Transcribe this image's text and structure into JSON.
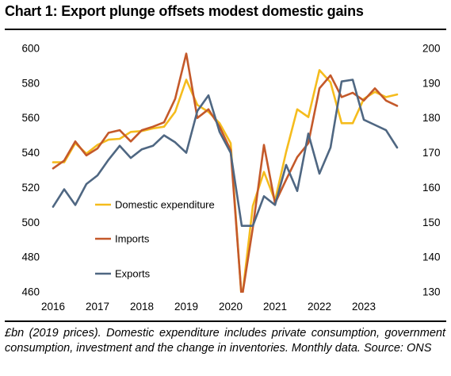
{
  "title": "Chart 1: Export plunge offsets modest domestic gains",
  "caption": "£bn (2019 prices). Domestic expenditure includes private consumption, government consumption, investment and the change in inventories. Monthly data. Source: ONS",
  "colors": {
    "domestic": "#F5BC1D",
    "imports": "#C4592A",
    "exports": "#4F6782",
    "text": "#000000"
  },
  "chart_data": {
    "type": "line",
    "x_ticks": [
      "2016",
      "2017",
      "2018",
      "2019",
      "2020",
      "2021",
      "2022",
      "2023"
    ],
    "y_left": {
      "ylim": [
        460,
        600
      ],
      "ticks": [
        "600",
        "580",
        "560",
        "540",
        "520",
        "500",
        "480",
        "460"
      ]
    },
    "y_right": {
      "ylim": [
        130,
        200
      ],
      "ticks": [
        "200",
        "190",
        "180",
        "170",
        "160",
        "150",
        "140",
        "130"
      ]
    },
    "grid": false,
    "legend_position": "left, inside plot",
    "series": [
      {
        "name": "Domestic expenditure",
        "axis": "left",
        "color": "#F5BC1D",
        "points": [
          [
            2016.0,
            534.5
          ],
          [
            2016.25,
            534.5
          ],
          [
            2016.5,
            545.5
          ],
          [
            2016.75,
            539.5
          ],
          [
            2017.0,
            544.5
          ],
          [
            2017.25,
            547.5
          ],
          [
            2017.5,
            548
          ],
          [
            2017.75,
            552
          ],
          [
            2018.0,
            552.5
          ],
          [
            2018.25,
            554
          ],
          [
            2018.5,
            555
          ],
          [
            2018.75,
            563.5
          ],
          [
            2019.0,
            582
          ],
          [
            2019.25,
            567.5
          ],
          [
            2019.5,
            563.5
          ],
          [
            2019.75,
            557
          ],
          [
            2020.0,
            545.5
          ],
          [
            2020.25,
            455
          ],
          [
            2020.5,
            509.5
          ],
          [
            2020.75,
            529
          ],
          [
            2021.0,
            512.5
          ],
          [
            2021.25,
            540.5
          ],
          [
            2021.5,
            565
          ],
          [
            2021.75,
            560.5
          ],
          [
            2022.0,
            587.5
          ],
          [
            2022.25,
            580.5
          ],
          [
            2022.5,
            557
          ],
          [
            2022.75,
            557
          ],
          [
            2023.0,
            571
          ],
          [
            2023.25,
            575
          ],
          [
            2023.5,
            572
          ],
          [
            2023.75,
            573.5
          ]
        ]
      },
      {
        "name": "Imports",
        "axis": "left",
        "color": "#C4592A",
        "points": [
          [
            2016.0,
            531
          ],
          [
            2016.25,
            535.5
          ],
          [
            2016.5,
            546.5
          ],
          [
            2016.75,
            538.5
          ],
          [
            2017.0,
            542.5
          ],
          [
            2017.25,
            551.5
          ],
          [
            2017.5,
            553
          ],
          [
            2017.75,
            546.5
          ],
          [
            2018.0,
            553
          ],
          [
            2018.25,
            555
          ],
          [
            2018.5,
            557.5
          ],
          [
            2018.75,
            571
          ],
          [
            2019.0,
            597
          ],
          [
            2019.25,
            560
          ],
          [
            2019.5,
            565
          ],
          [
            2019.75,
            555
          ],
          [
            2020.0,
            541.5
          ],
          [
            2020.25,
            456
          ],
          [
            2020.5,
            497
          ],
          [
            2020.75,
            544.5
          ],
          [
            2021.0,
            511
          ],
          [
            2021.25,
            524.5
          ],
          [
            2021.5,
            537.5
          ],
          [
            2021.75,
            545.5
          ],
          [
            2022.0,
            577
          ],
          [
            2022.25,
            584.5
          ],
          [
            2022.5,
            572
          ],
          [
            2022.75,
            574.5
          ],
          [
            2023.0,
            570
          ],
          [
            2023.25,
            577
          ],
          [
            2023.5,
            570
          ],
          [
            2023.75,
            567
          ]
        ]
      },
      {
        "name": "Exports",
        "axis": "right",
        "color": "#4F6782",
        "points": [
          [
            2016.0,
            154.5
          ],
          [
            2016.25,
            159.5
          ],
          [
            2016.5,
            155
          ],
          [
            2016.75,
            161
          ],
          [
            2017.0,
            163.5
          ],
          [
            2017.25,
            168
          ],
          [
            2017.5,
            172
          ],
          [
            2017.75,
            168.5
          ],
          [
            2018.0,
            171
          ],
          [
            2018.25,
            172
          ],
          [
            2018.5,
            175
          ],
          [
            2018.75,
            173
          ],
          [
            2019.0,
            170
          ],
          [
            2019.25,
            182
          ],
          [
            2019.5,
            186.5
          ],
          [
            2019.75,
            176
          ],
          [
            2020.0,
            170
          ],
          [
            2020.25,
            149
          ],
          [
            2020.5,
            149
          ],
          [
            2020.75,
            157.5
          ],
          [
            2021.0,
            155
          ],
          [
            2021.25,
            166.5
          ],
          [
            2021.5,
            159
          ],
          [
            2021.75,
            175.5
          ],
          [
            2022.0,
            164
          ],
          [
            2022.25,
            171.5
          ],
          [
            2022.5,
            190.5
          ],
          [
            2022.75,
            191
          ],
          [
            2023.0,
            179.5
          ],
          [
            2023.25,
            178
          ],
          [
            2023.5,
            176.5
          ],
          [
            2023.75,
            171.5
          ]
        ]
      }
    ]
  }
}
